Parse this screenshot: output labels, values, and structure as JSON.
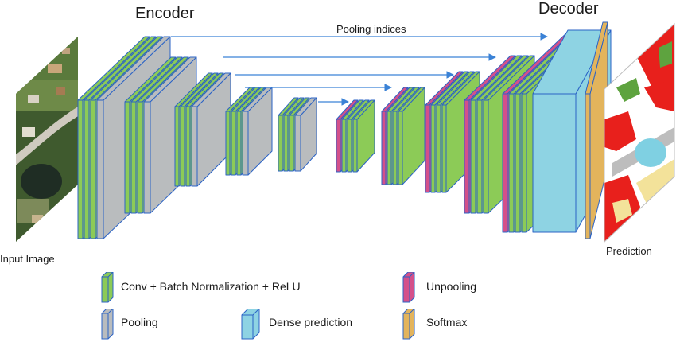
{
  "titles": {
    "encoder": "Encoder",
    "decoder": "Decoder",
    "pooling_indices": "Pooling indices"
  },
  "labels": {
    "input_image": "Input Image",
    "prediction": "Prediction"
  },
  "legend": [
    {
      "key": "conv",
      "label": "Conv + Batch Normalization + ReLU",
      "color": "#8ccb57",
      "icon": "green-block-icon"
    },
    {
      "key": "pool",
      "label": "Pooling",
      "color": "#b9bcbe",
      "icon": "gray-block-icon"
    },
    {
      "key": "dense",
      "label": "Dense prediction",
      "color": "#8ed3e3",
      "icon": "cyan-block-icon"
    },
    {
      "key": "unpool",
      "label": "Unpooling",
      "color": "#d4508a",
      "icon": "pink-block-icon"
    },
    {
      "key": "softmax",
      "label": "Softmax",
      "color": "#e3b45c",
      "icon": "orange-block-icon"
    }
  ],
  "colors": {
    "conv": "#8ccb57",
    "pool": "#b9bcbe",
    "dense": "#8ed3e3",
    "unpool": "#d4508a",
    "softmax": "#e3b45c",
    "outline": "#2b63c6",
    "arrow": "#3b82d6"
  }
}
